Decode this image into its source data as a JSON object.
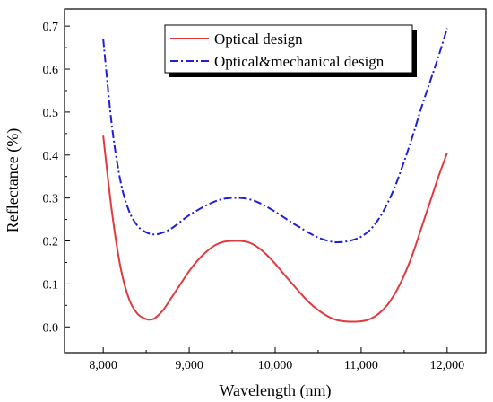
{
  "chart_data": {
    "type": "line",
    "title": "",
    "xlabel": "Wavelength (nm)",
    "ylabel": "Reflectance (%)",
    "xlim": [
      7550,
      12450
    ],
    "ylim": [
      -0.06,
      0.74
    ],
    "xticks": [
      8000,
      9000,
      10000,
      11000,
      12000
    ],
    "xtick_labels": [
      "8,000",
      "9,000",
      "10,000",
      "11,000",
      "12,000"
    ],
    "yticks": [
      0.0,
      0.1,
      0.2,
      0.3,
      0.4,
      0.5,
      0.6,
      0.7
    ],
    "ytick_labels": [
      "0.0",
      "0.1",
      "0.2",
      "0.3",
      "0.4",
      "0.5",
      "0.6",
      "0.7"
    ],
    "grid": false,
    "legend_position": "top-right",
    "series": [
      {
        "name": "Optical design",
        "color": "#e0393e",
        "dash": "solid",
        "x": [
          8000,
          8100,
          8200,
          8300,
          8400,
          8500,
          8550,
          8600,
          8700,
          8800,
          8900,
          9000,
          9100,
          9200,
          9300,
          9400,
          9500,
          9600,
          9700,
          9800,
          9900,
          10000,
          10100,
          10200,
          10300,
          10400,
          10500,
          10600,
          10700,
          10800,
          10900,
          11000,
          11100,
          11200,
          11300,
          11400,
          11500,
          11600,
          11700,
          11800,
          11900,
          12000
        ],
        "y": [
          0.445,
          0.27,
          0.14,
          0.065,
          0.03,
          0.018,
          0.017,
          0.02,
          0.04,
          0.07,
          0.1,
          0.13,
          0.155,
          0.175,
          0.19,
          0.198,
          0.2,
          0.2,
          0.196,
          0.185,
          0.168,
          0.147,
          0.123,
          0.1,
          0.077,
          0.056,
          0.039,
          0.026,
          0.017,
          0.013,
          0.012,
          0.013,
          0.018,
          0.03,
          0.05,
          0.08,
          0.12,
          0.17,
          0.23,
          0.29,
          0.35,
          0.405
        ]
      },
      {
        "name": "Optical&mechanical design",
        "color": "#1f1fd6",
        "dash": "dashdot",
        "x": [
          8000,
          8100,
          8200,
          8300,
          8400,
          8500,
          8600,
          8700,
          8800,
          8900,
          9000,
          9100,
          9200,
          9300,
          9400,
          9500,
          9600,
          9700,
          9800,
          9900,
          10000,
          10100,
          10200,
          10300,
          10400,
          10500,
          10600,
          10700,
          10800,
          10900,
          11000,
          11100,
          11200,
          11300,
          11400,
          11500,
          11600,
          11700,
          11800,
          11900,
          12000
        ],
        "y": [
          0.67,
          0.47,
          0.34,
          0.27,
          0.235,
          0.22,
          0.215,
          0.22,
          0.23,
          0.245,
          0.26,
          0.272,
          0.283,
          0.292,
          0.298,
          0.3,
          0.3,
          0.297,
          0.29,
          0.28,
          0.268,
          0.255,
          0.242,
          0.23,
          0.218,
          0.208,
          0.201,
          0.197,
          0.198,
          0.202,
          0.21,
          0.225,
          0.25,
          0.285,
          0.33,
          0.385,
          0.445,
          0.51,
          0.57,
          0.63,
          0.695
        ]
      }
    ]
  }
}
